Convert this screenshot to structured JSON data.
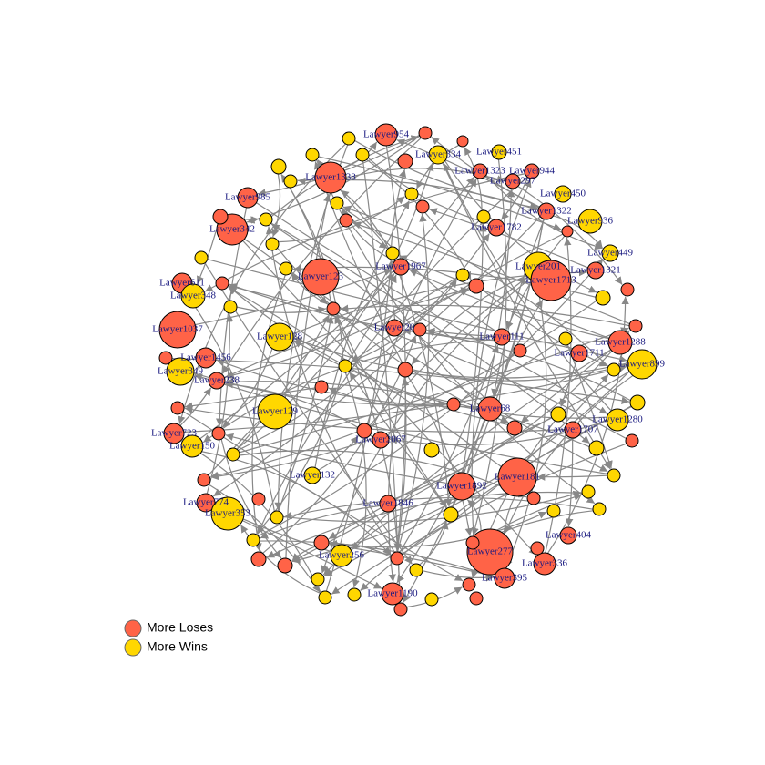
{
  "nodes": [
    {
      "label": "Lawyer954",
      "group": 0
    },
    {
      "label": "Lawyer334",
      "group": 1
    },
    {
      "label": "Lawyer451",
      "group": 1
    },
    {
      "label": "Lawyer1323",
      "group": 0
    },
    {
      "label": "Lawyer944",
      "group": 0
    },
    {
      "label": "Lawyer297",
      "group": 0
    },
    {
      "label": "Lawyer1338",
      "group": 0
    },
    {
      "label": "Lawyer985",
      "group": 0
    },
    {
      "label": "Lawyer450",
      "group": 1
    },
    {
      "label": "Lawyer1322",
      "group": 0
    },
    {
      "label": "Lawyer936",
      "group": 1
    },
    {
      "label": "Lawyer342",
      "group": 0
    },
    {
      "label": "Lawyer1782",
      "group": 0
    },
    {
      "label": "Lawyer449",
      "group": 1
    },
    {
      "label": "Lawyer1967",
      "group": 0
    },
    {
      "label": "Lawyer201",
      "group": 1
    },
    {
      "label": "Lawyer1321",
      "group": 0
    },
    {
      "label": "Lawyer123",
      "group": 0
    },
    {
      "label": "Lawyer1713",
      "group": 0
    },
    {
      "label": "Lawyer611",
      "group": 0
    },
    {
      "label": "Lawyer348",
      "group": 1
    },
    {
      "label": "Lawyer1037",
      "group": 0
    },
    {
      "label": "Lawyer20",
      "group": 0
    },
    {
      "label": "Lawyer128",
      "group": 1
    },
    {
      "label": "Lawyer111",
      "group": 0
    },
    {
      "label": "Lawyer1288",
      "group": 0
    },
    {
      "label": "Lawyer1456",
      "group": 0
    },
    {
      "label": "Lawyer1711",
      "group": 0
    },
    {
      "label": "Lawyer899",
      "group": 1
    },
    {
      "label": "Lawyer349",
      "group": 1
    },
    {
      "label": "Lawyer238",
      "group": 0
    },
    {
      "label": "Lawyer129",
      "group": 1
    },
    {
      "label": "Lawyer68",
      "group": 0
    },
    {
      "label": "Lawyer1280",
      "group": 1
    },
    {
      "label": "Lawyer1707",
      "group": 0
    },
    {
      "label": "Lawyer723",
      "group": 0
    },
    {
      "label": "Lawyer2067",
      "group": 0
    },
    {
      "label": "Lawyer150",
      "group": 1
    },
    {
      "label": "Lawyer181",
      "group": 0
    },
    {
      "label": "Lawyer132",
      "group": 1
    },
    {
      "label": "Lawyer1892",
      "group": 0
    },
    {
      "label": "Lawyer1846",
      "group": 0
    },
    {
      "label": "Lawyer774",
      "group": 0
    },
    {
      "label": "Lawyer353",
      "group": 1
    },
    {
      "label": "Lawyer404",
      "group": 0
    },
    {
      "label": "Lawyer277",
      "group": 0
    },
    {
      "label": "Lawyer336",
      "group": 0
    },
    {
      "label": "Lawyer256",
      "group": 1
    },
    {
      "label": "Lawyer395",
      "group": 0
    },
    {
      "label": "Lawyer1190",
      "group": 0
    }
  ],
  "legend": [
    {
      "label": "More Loses",
      "color": "#ff6347"
    },
    {
      "label": "More Wins",
      "color": "#ffd700"
    }
  ]
}
